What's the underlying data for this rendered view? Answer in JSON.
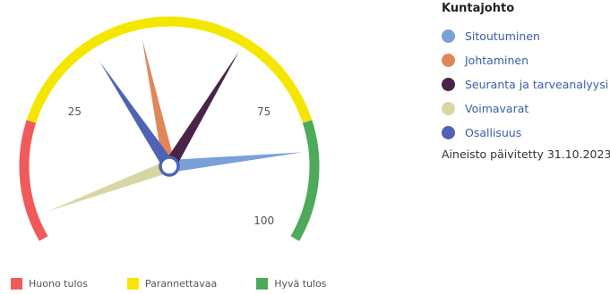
{
  "title": "Kuntajohto",
  "updated_text": "Aineisto päivitetty 31.10.2023",
  "chart_data": {
    "type": "gauge",
    "title": "",
    "range": [
      0,
      100
    ],
    "tick_labels": [
      {
        "value": 25,
        "label": "25"
      },
      {
        "value": 75,
        "label": "75"
      },
      {
        "value": 100,
        "label": "100"
      }
    ],
    "bands": [
      {
        "name": "Huono tulos",
        "from": 0,
        "to": 20,
        "color": "#f05a5a"
      },
      {
        "name": "Parannettavaa",
        "from": 20,
        "to": 80,
        "color": "#f5e600"
      },
      {
        "name": "Hyvä tulos",
        "from": 80,
        "to": 100,
        "color": "#4caa5a"
      }
    ],
    "series": [
      {
        "name": "Sitoutuminen",
        "value": 85,
        "color": "#7b9fd8"
      },
      {
        "name": "Johtaminen",
        "value": 45,
        "color": "#e0875a"
      },
      {
        "name": "Seuranta ja tarveanalyysi",
        "value": 63,
        "color": "#4a2448"
      },
      {
        "name": "Voimavarat",
        "value": 4,
        "color": "#d8d7a4"
      },
      {
        "name": "Osallisuus",
        "value": 36,
        "color": "#4f63b5"
      }
    ]
  }
}
